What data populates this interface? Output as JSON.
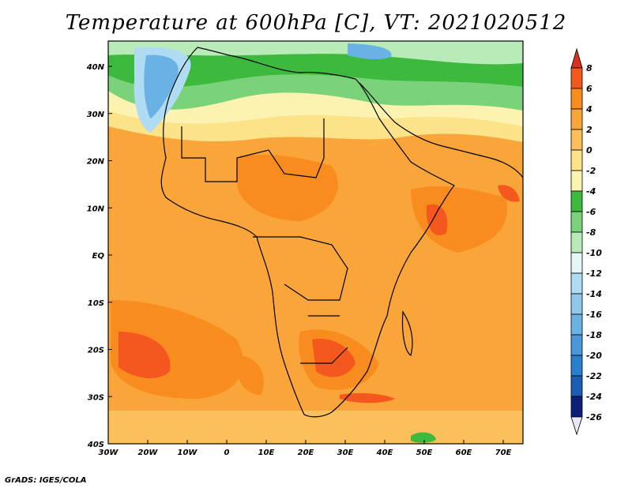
{
  "title": "Temperature at 600hPa [C], VT: 2021020512",
  "credit": "GrADS: IGES/COLA",
  "map": {
    "lon_range": [
      -30,
      76
    ],
    "lat_range": [
      -40,
      45
    ],
    "x_ticks": [
      "30W",
      "20W",
      "10W",
      "0",
      "10E",
      "20E",
      "30E",
      "40E",
      "50E",
      "60E",
      "70E"
    ],
    "y_ticks": [
      "40N",
      "30N",
      "20N",
      "10N",
      "EQ",
      "10S",
      "20S",
      "30S",
      "40S"
    ]
  },
  "colorbar": {
    "levels": [
      "8",
      "6",
      "4",
      "2",
      "0",
      "-2",
      "-4",
      "-6",
      "-8",
      "-10",
      "-12",
      "-14",
      "-16",
      "-18",
      "-20",
      "-22",
      "-24",
      "-26"
    ],
    "colors": [
      "#d7301f",
      "#f5581f",
      "#f88c1e",
      "#f9a53a",
      "#fbc05b",
      "#fce38a",
      "#fdf3b1",
      "#3dba3d",
      "#7ad37a",
      "#b8ebb8",
      "#e3f7f7",
      "#b0dcf3",
      "#90c8ec",
      "#6ab2e4",
      "#4a98da",
      "#2a7ed0",
      "#1c5db5",
      "#0b1e78"
    ]
  }
}
